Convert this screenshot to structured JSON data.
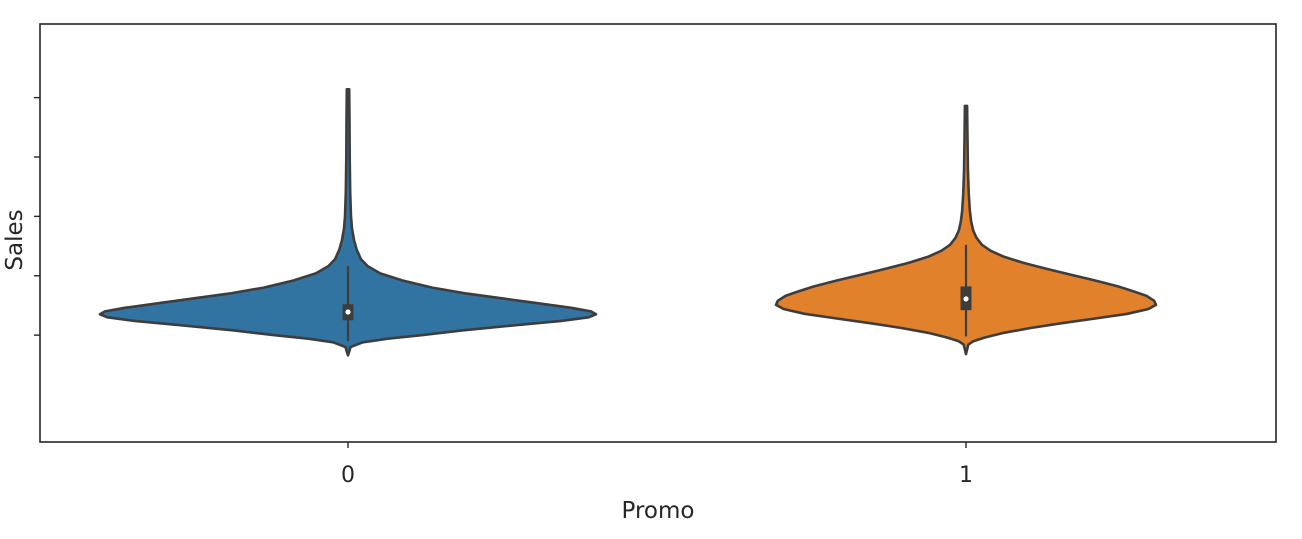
{
  "chart_data": {
    "type": "violin",
    "xlabel": "Promo",
    "ylabel": "Sales",
    "categories": [
      "0",
      "1"
    ],
    "y_tick_labels_visible": false,
    "grid": false,
    "legend": "none",
    "colors": {
      "0": "#3274a1",
      "1": "#e1812c",
      "outline": "#3d3d3d",
      "box": "#3d3d3d",
      "median": "#ffffff"
    },
    "violins": [
      {
        "category": "0",
        "median": 0.195,
        "q1": 0.125,
        "q3": 0.26,
        "whisker_low": -0.05,
        "whisker_high": 0.58,
        "min": -0.17,
        "max": 2.07,
        "density": [
          [
            -0.17,
            0.0
          ],
          [
            -0.13,
            0.006
          ],
          [
            -0.1,
            0.01
          ],
          [
            -0.06,
            0.06
          ],
          [
            -0.03,
            0.16
          ],
          [
            0.0,
            0.3
          ],
          [
            0.04,
            0.46
          ],
          [
            0.08,
            0.66
          ],
          [
            0.12,
            0.86
          ],
          [
            0.15,
            0.97
          ],
          [
            0.175,
            1.0
          ],
          [
            0.2,
            0.98
          ],
          [
            0.23,
            0.9
          ],
          [
            0.27,
            0.76
          ],
          [
            0.31,
            0.62
          ],
          [
            0.35,
            0.48
          ],
          [
            0.4,
            0.34
          ],
          [
            0.46,
            0.22
          ],
          [
            0.52,
            0.13
          ],
          [
            0.58,
            0.08
          ],
          [
            0.64,
            0.052
          ],
          [
            0.72,
            0.035
          ],
          [
            0.8,
            0.024
          ],
          [
            0.9,
            0.016
          ],
          [
            1.0,
            0.012
          ],
          [
            1.2,
            0.009
          ],
          [
            1.5,
            0.007
          ],
          [
            1.8,
            0.006
          ],
          [
            2.07,
            0.005
          ]
        ]
      },
      {
        "category": "1",
        "median": 0.305,
        "q1": 0.21,
        "q3": 0.41,
        "whisker_low": -0.01,
        "whisker_high": 0.76,
        "min": -0.16,
        "max": 1.93,
        "density": [
          [
            -0.16,
            0.0
          ],
          [
            -0.12,
            0.006
          ],
          [
            -0.08,
            0.012
          ],
          [
            -0.05,
            0.04
          ],
          [
            -0.02,
            0.1
          ],
          [
            0.02,
            0.2
          ],
          [
            0.06,
            0.34
          ],
          [
            0.1,
            0.5
          ],
          [
            0.14,
            0.68
          ],
          [
            0.18,
            0.85
          ],
          [
            0.22,
            0.96
          ],
          [
            0.255,
            1.0
          ],
          [
            0.29,
            0.99
          ],
          [
            0.33,
            0.95
          ],
          [
            0.37,
            0.88
          ],
          [
            0.41,
            0.8
          ],
          [
            0.46,
            0.68
          ],
          [
            0.51,
            0.55
          ],
          [
            0.56,
            0.42
          ],
          [
            0.61,
            0.3
          ],
          [
            0.66,
            0.2
          ],
          [
            0.71,
            0.13
          ],
          [
            0.76,
            0.085
          ],
          [
            0.82,
            0.055
          ],
          [
            0.88,
            0.038
          ],
          [
            0.96,
            0.027
          ],
          [
            1.05,
            0.02
          ],
          [
            1.2,
            0.014
          ],
          [
            1.4,
            0.01
          ],
          [
            1.65,
            0.008
          ],
          [
            1.93,
            0.006
          ]
        ]
      }
    ]
  }
}
